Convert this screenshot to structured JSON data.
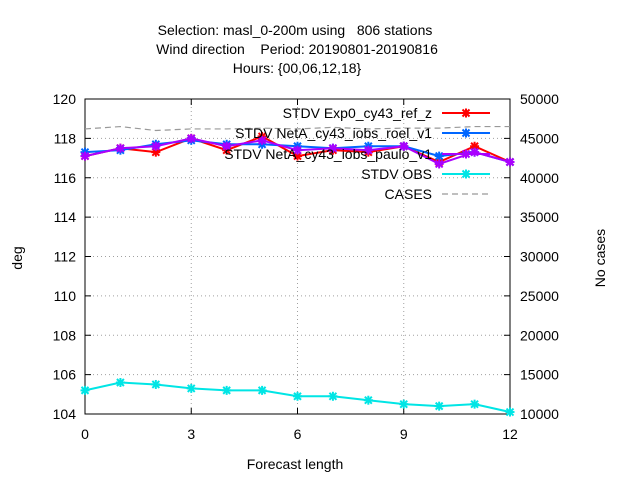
{
  "chart_data": {
    "type": "line",
    "title_lines": [
      "Selection: masl_0-200m using   806 stations",
      "Wind direction    Period: 20190801-20190816",
      "Hours: {00,06,12,18}"
    ],
    "xlabel": "Forecast length",
    "ylabel": "deg",
    "y2label": "No cases",
    "xlim": [
      0,
      12
    ],
    "ylim": [
      104,
      120
    ],
    "y2lim": [
      10000,
      50000
    ],
    "xticks": [
      "0",
      "3",
      "6",
      "9",
      "12"
    ],
    "yticks": [
      "104",
      "106",
      "108",
      "110",
      "112",
      "114",
      "116",
      "118",
      "120"
    ],
    "y2ticks": [
      "10000",
      "15000",
      "20000",
      "25000",
      "30000",
      "35000",
      "40000",
      "45000",
      "50000"
    ],
    "x": [
      0,
      1,
      2,
      3,
      4,
      5,
      6,
      7,
      8,
      9,
      10,
      11,
      12
    ],
    "series": [
      {
        "name": "STDV Exp0_cy43_ref_z",
        "color": "#ff0000",
        "axis": "y",
        "values": [
          117.1,
          117.5,
          117.3,
          118.0,
          117.4,
          118.1,
          117.1,
          117.4,
          117.3,
          117.6,
          116.8,
          117.6,
          116.8
        ]
      },
      {
        "name": "STDV NetA_cy43_iobs_roel_v1",
        "color": "#0066ff",
        "axis": "y",
        "values": [
          117.3,
          117.4,
          117.7,
          117.9,
          117.7,
          117.7,
          117.6,
          117.5,
          117.6,
          117.6,
          117.1,
          117.3,
          116.8
        ]
      },
      {
        "name": "STDV NetA_cy43_iobs_paulo_v1",
        "color": "#aa00ff",
        "axis": "y",
        "values": [
          117.1,
          117.5,
          117.6,
          118.0,
          117.6,
          117.9,
          117.4,
          117.5,
          117.4,
          117.6,
          116.7,
          117.3,
          116.8
        ]
      },
      {
        "name": "STDV OBS",
        "color": "#00e5e5",
        "axis": "y",
        "values": [
          105.2,
          105.6,
          105.5,
          105.3,
          105.2,
          105.2,
          104.9,
          104.9,
          104.7,
          104.5,
          104.4,
          104.5,
          104.1
        ]
      },
      {
        "name": "CASES",
        "color": "#999999",
        "axis": "y2",
        "dashed": true,
        "values": [
          46200,
          46500,
          46000,
          46200,
          46200,
          46300,
          46200,
          46400,
          46200,
          46300,
          46300,
          46500,
          46500
        ]
      }
    ],
    "legend_position": "top-right"
  }
}
